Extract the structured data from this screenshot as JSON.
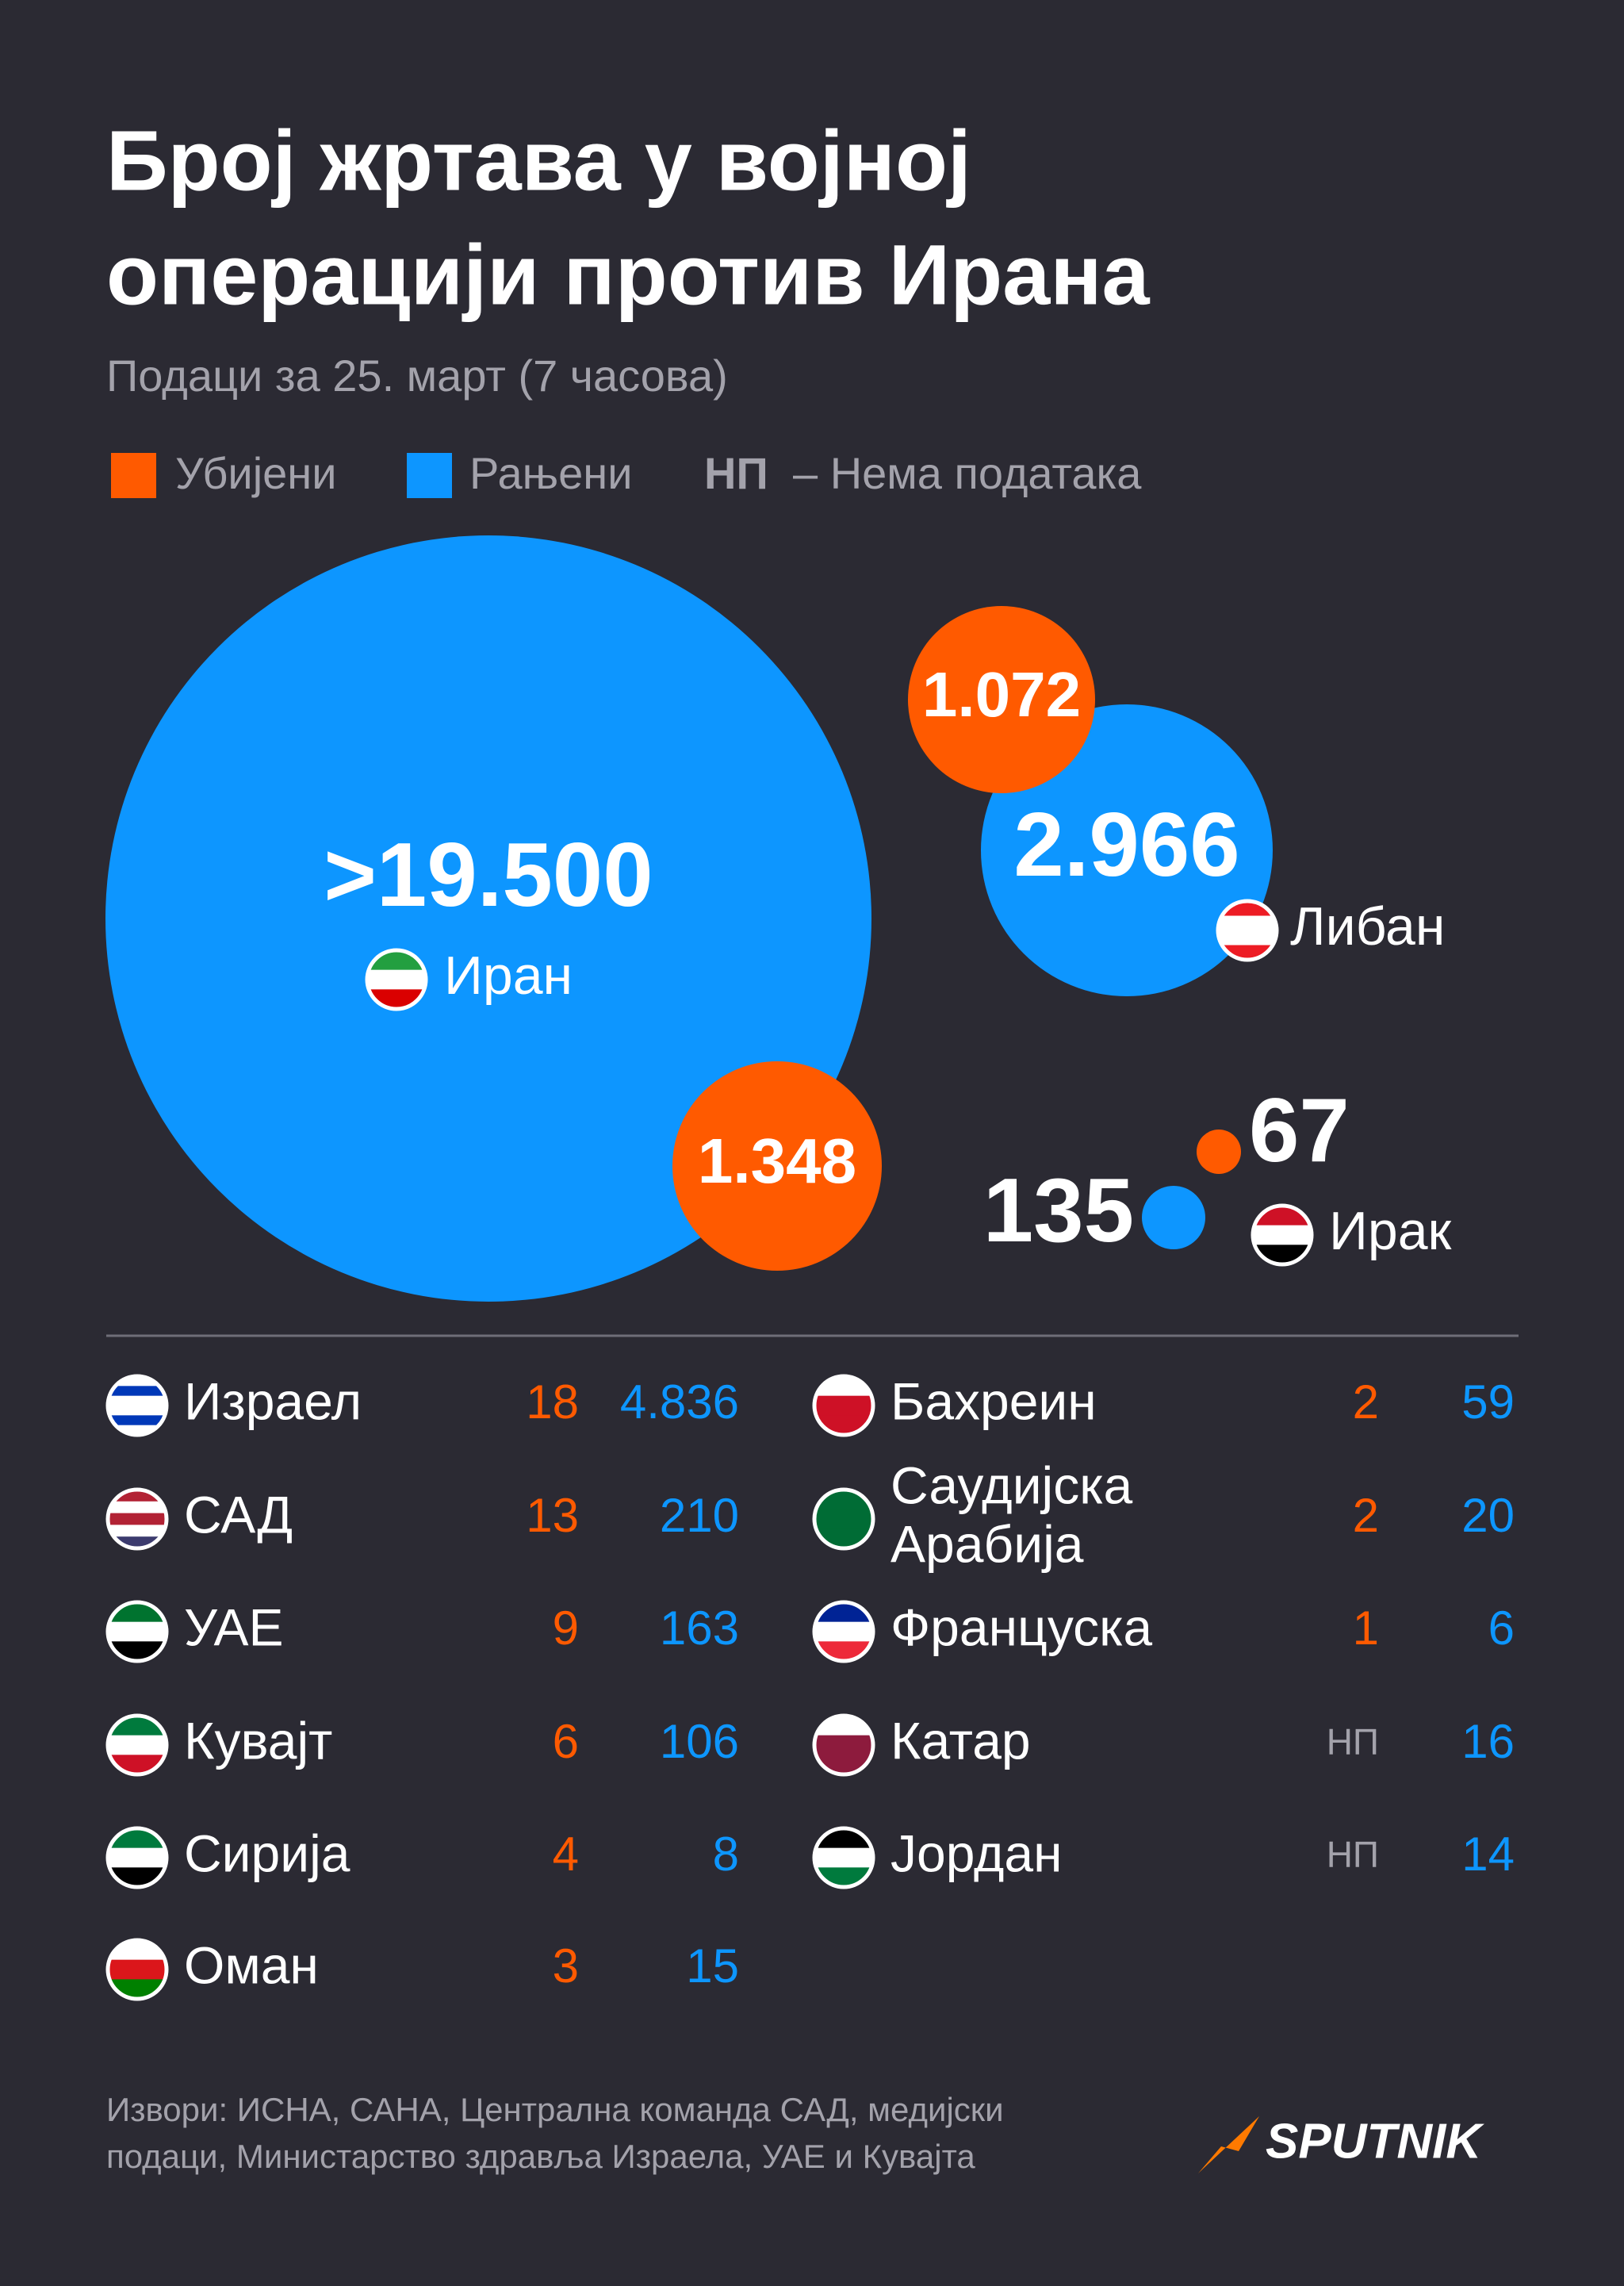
{
  "header": {
    "title": [
      "Број жртава у војној",
      "операцији против Ирана"
    ],
    "subtitle": "Подаци за 25. март (7 часова)"
  },
  "legend": {
    "killed": "Убијени",
    "wounded": "Рањени",
    "na_abbr": "НП",
    "na_text": "– Нема података"
  },
  "bubbles": [
    {
      "country": "Иран",
      "wounded": ">19.500",
      "killed": "1.348"
    },
    {
      "country": "Либан",
      "wounded": "2.966",
      "killed": "1.072"
    },
    {
      "country": "Ирак",
      "wounded": "135",
      "killed": "67"
    }
  ],
  "table": {
    "left": [
      {
        "name": "Израел",
        "killed": "18",
        "wounded": "4.836"
      },
      {
        "name": "САД",
        "killed": "13",
        "wounded": "210"
      },
      {
        "name": "УАЕ",
        "killed": "9",
        "wounded": "163"
      },
      {
        "name": "Кувајт",
        "killed": "6",
        "wounded": "106"
      },
      {
        "name": "Сирија",
        "killed": "4",
        "wounded": "8"
      },
      {
        "name": "Оман",
        "killed": "3",
        "wounded": "15"
      }
    ],
    "right": [
      {
        "name": "Бахреин",
        "killed": "2",
        "wounded": "59"
      },
      {
        "name": [
          "Саудијска",
          "Арабија"
        ],
        "killed": "2",
        "wounded": "20"
      },
      {
        "name": "Француска",
        "killed": "1",
        "wounded": "6"
      },
      {
        "name": "Катар",
        "killed": "НП",
        "wounded": "16"
      },
      {
        "name": "Јордан",
        "killed": "НП",
        "wounded": "14"
      }
    ]
  },
  "footer": {
    "sources": [
      "Извори: ИСНА, САНА, Централна команда САД, медијски",
      "подаци, Министарство здравља Израела, УАЕ и Кувајта"
    ],
    "logo": "SPUTNIK"
  }
}
